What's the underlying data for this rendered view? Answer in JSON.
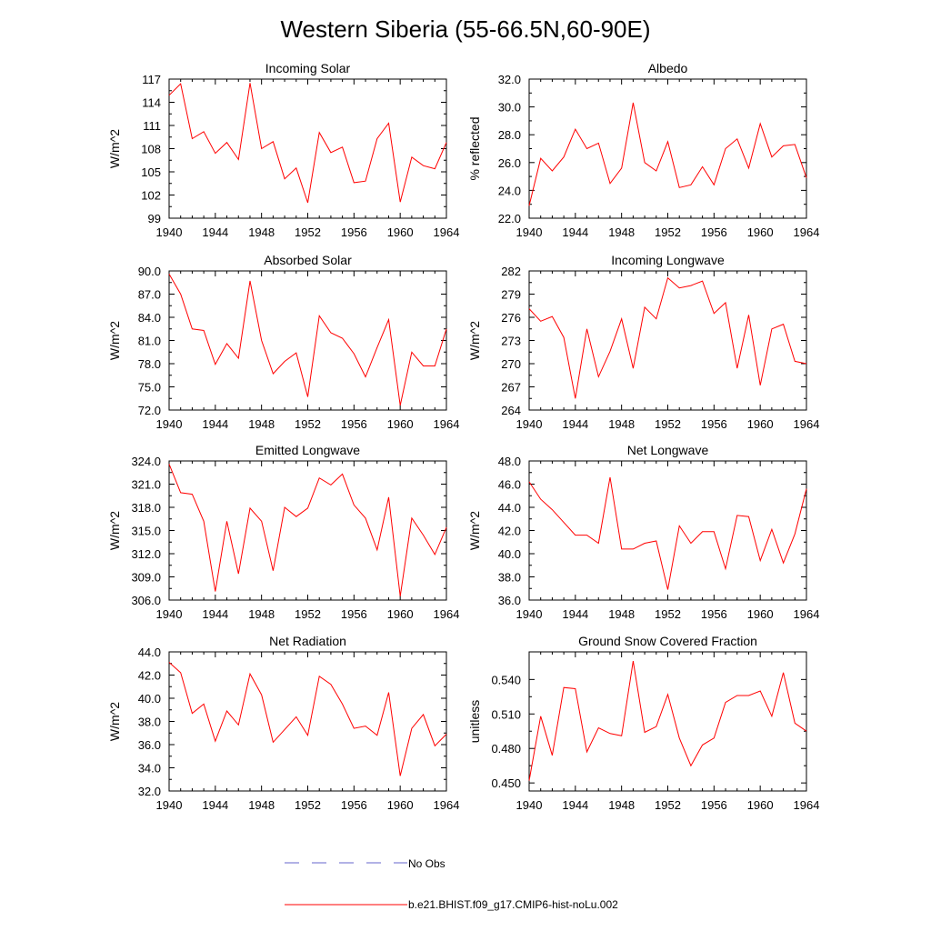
{
  "figure": {
    "title": "Western Siberia (55-66.5N,60-90E)",
    "x": [
      1940,
      1941,
      1942,
      1943,
      1944,
      1945,
      1946,
      1947,
      1948,
      1949,
      1950,
      1951,
      1952,
      1953,
      1954,
      1955,
      1956,
      1957,
      1958,
      1959,
      1960,
      1961,
      1962,
      1963,
      1964
    ],
    "xlim": [
      1940,
      1964
    ],
    "xticks": [
      1940,
      1944,
      1948,
      1952,
      1956,
      1960,
      1964
    ]
  },
  "chart_data": [
    {
      "type": "line",
      "title": "Incoming Solar",
      "xlabel": "",
      "ylabel": "W/m^2",
      "ylim": [
        99,
        117
      ],
      "yticks": [
        99,
        102,
        105,
        108,
        111,
        114,
        117
      ],
      "ytick_decimals": 0,
      "series": [
        {
          "name": "b.e21.BHIST.f09_g17.CMIP6-hist-noLu.002",
          "color": "#ff0000",
          "values": [
            114.9,
            116.4,
            109.3,
            110.2,
            107.4,
            108.8,
            106.6,
            116.5,
            108.0,
            108.9,
            104.1,
            105.5,
            101.0,
            110.1,
            107.5,
            108.2,
            103.6,
            103.8,
            109.3,
            111.3,
            101.1,
            106.9,
            105.8,
            105.4,
            108.8
          ]
        }
      ]
    },
    {
      "type": "line",
      "title": "Albedo",
      "xlabel": "",
      "ylabel": "% reflected",
      "ylim": [
        22.0,
        32.0
      ],
      "yticks": [
        22.0,
        24.0,
        26.0,
        28.0,
        30.0,
        32.0
      ],
      "ytick_decimals": 1,
      "series": [
        {
          "name": "b.e21.BHIST.f09_g17.CMIP6-hist-noLu.002",
          "color": "#ff0000",
          "values": [
            22.9,
            26.3,
            25.4,
            26.4,
            28.4,
            27.0,
            27.4,
            24.5,
            25.6,
            30.3,
            26.0,
            25.4,
            27.5,
            24.2,
            24.4,
            25.7,
            24.4,
            27.0,
            27.7,
            25.6,
            28.8,
            26.4,
            27.2,
            27.3,
            24.9
          ]
        }
      ]
    },
    {
      "type": "line",
      "title": "Absorbed Solar",
      "xlabel": "",
      "ylabel": "W/m^2",
      "ylim": [
        72.0,
        90.0
      ],
      "yticks": [
        72.0,
        75.0,
        78.0,
        81.0,
        84.0,
        87.0,
        90.0
      ],
      "ytick_decimals": 1,
      "series": [
        {
          "name": "b.e21.BHIST.f09_g17.CMIP6-hist-noLu.002",
          "color": "#ff0000",
          "values": [
            89.6,
            87.0,
            82.5,
            82.3,
            77.9,
            80.6,
            78.7,
            88.7,
            81.0,
            76.7,
            78.3,
            79.4,
            73.7,
            84.2,
            82.0,
            81.3,
            79.3,
            76.3,
            80.1,
            83.7,
            72.6,
            79.5,
            77.7,
            77.7,
            82.5
          ]
        }
      ]
    },
    {
      "type": "line",
      "title": "Incoming Longwave",
      "xlabel": "",
      "ylabel": "W/m^2",
      "ylim": [
        264,
        282
      ],
      "yticks": [
        264,
        267,
        270,
        273,
        276,
        279,
        282
      ],
      "ytick_decimals": 0,
      "series": [
        {
          "name": "b.e21.BHIST.f09_g17.CMIP6-hist-noLu.002",
          "color": "#ff0000",
          "values": [
            277.1,
            275.5,
            276.1,
            273.4,
            265.5,
            274.5,
            268.3,
            271.6,
            275.8,
            269.4,
            277.3,
            275.8,
            281.1,
            279.8,
            280.1,
            280.7,
            276.5,
            277.9,
            269.4,
            276.3,
            267.2,
            274.5,
            275.1,
            270.3,
            270.0
          ]
        }
      ]
    },
    {
      "type": "line",
      "title": "Emitted Longwave",
      "xlabel": "",
      "ylabel": "W/m^2",
      "ylim": [
        306.0,
        324.0
      ],
      "yticks": [
        306.0,
        309.0,
        312.0,
        315.0,
        318.0,
        321.0,
        324.0
      ],
      "ytick_decimals": 1,
      "series": [
        {
          "name": "b.e21.BHIST.f09_g17.CMIP6-hist-noLu.002",
          "color": "#ff0000",
          "values": [
            323.6,
            319.9,
            319.7,
            316.2,
            307.1,
            316.2,
            309.4,
            317.9,
            316.2,
            309.8,
            318.0,
            316.8,
            317.9,
            321.8,
            320.9,
            322.3,
            318.3,
            316.6,
            312.5,
            319.3,
            306.5,
            316.6,
            314.4,
            311.9,
            315.4
          ]
        }
      ]
    },
    {
      "type": "line",
      "title": "Net Longwave",
      "xlabel": "",
      "ylabel": "W/m^2",
      "ylim": [
        36.0,
        48.0
      ],
      "yticks": [
        36.0,
        38.0,
        40.0,
        42.0,
        44.0,
        46.0,
        48.0
      ],
      "ytick_decimals": 1,
      "series": [
        {
          "name": "b.e21.BHIST.f09_g17.CMIP6-hist-noLu.002",
          "color": "#ff0000",
          "values": [
            46.2,
            44.7,
            43.8,
            42.7,
            41.6,
            41.6,
            40.9,
            46.6,
            40.4,
            40.4,
            40.9,
            41.1,
            36.9,
            42.4,
            40.9,
            41.9,
            41.9,
            38.7,
            43.3,
            43.2,
            39.4,
            42.1,
            39.2,
            41.7,
            45.6
          ]
        }
      ]
    },
    {
      "type": "line",
      "title": "Net Radiation",
      "xlabel": "",
      "ylabel": "W/m^2",
      "ylim": [
        32.0,
        44.0
      ],
      "yticks": [
        32.0,
        34.0,
        36.0,
        38.0,
        40.0,
        42.0,
        44.0
      ],
      "ytick_decimals": 1,
      "series": [
        {
          "name": "b.e21.BHIST.f09_g17.CMIP6-hist-noLu.002",
          "color": "#ff0000",
          "values": [
            43.1,
            42.2,
            38.7,
            39.5,
            36.3,
            38.9,
            37.7,
            42.1,
            40.3,
            36.2,
            37.3,
            38.4,
            36.8,
            41.9,
            41.2,
            39.5,
            37.4,
            37.6,
            36.8,
            40.5,
            33.3,
            37.4,
            38.6,
            35.9,
            36.9
          ]
        }
      ]
    },
    {
      "type": "line",
      "title": "Ground Snow Covered Fraction",
      "xlabel": "",
      "ylabel": "unitless",
      "ylim": [
        0.443,
        0.564
      ],
      "yticks": [
        0.45,
        0.48,
        0.51,
        0.54
      ],
      "ytick_decimals": 3,
      "series": [
        {
          "name": "b.e21.BHIST.f09_g17.CMIP6-hist-noLu.002",
          "color": "#ff0000",
          "values": [
            0.452,
            0.508,
            0.474,
            0.533,
            0.532,
            0.477,
            0.498,
            0.493,
            0.491,
            0.556,
            0.494,
            0.499,
            0.527,
            0.489,
            0.465,
            0.483,
            0.489,
            0.52,
            0.526,
            0.526,
            0.53,
            0.508,
            0.546,
            0.502,
            0.495
          ]
        }
      ]
    }
  ],
  "legend": {
    "entries": [
      {
        "label": "No Obs",
        "color": "#6666cc",
        "style": "dashed"
      },
      {
        "label": "b.e21.BHIST.f09_g17.CMIP6-hist-noLu.002",
        "color": "#ff0000",
        "style": "solid"
      }
    ]
  }
}
